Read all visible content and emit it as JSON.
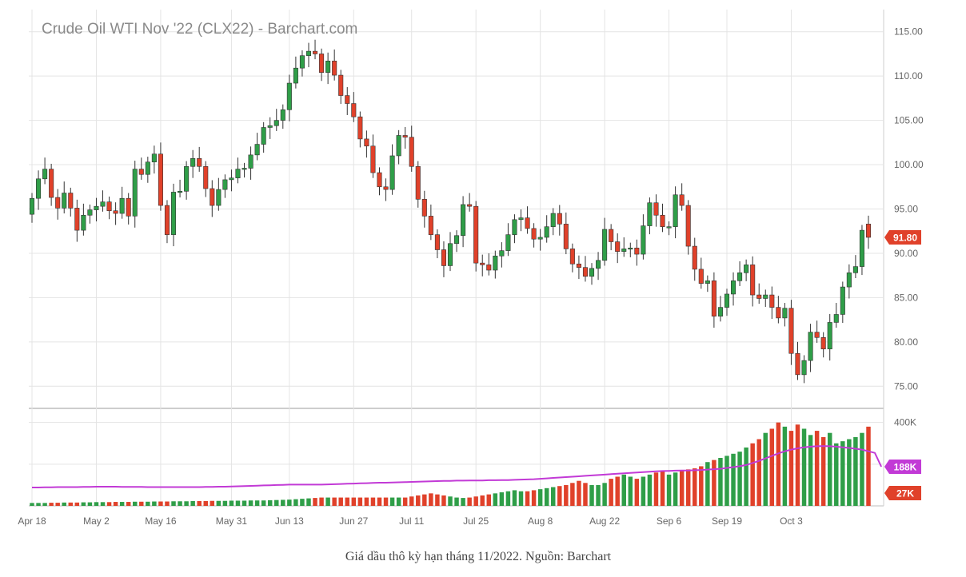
{
  "chart_data": {
    "type": "candlestick",
    "title": "Crude Oil WTI Nov '22 (CLX22) - Barchart.com",
    "price_axis": {
      "ticks": [
        "115.00",
        "110.00",
        "105.00",
        "100.00",
        "95.00",
        "90.00",
        "85.00",
        "80.00",
        "75.00"
      ],
      "range": [
        72.5,
        117.5
      ]
    },
    "volume_axis": {
      "ticks": [
        "400K"
      ],
      "range": [
        0,
        460
      ]
    },
    "x_tick_labels": [
      "Apr 18",
      "May 2",
      "May 16",
      "May 31",
      "Jun 13",
      "Jun 27",
      "Jul 11",
      "Jul 25",
      "Aug 8",
      "Aug 22",
      "Sep 6",
      "Sep 19",
      "Oct 3"
    ],
    "last_price_label": "91.80",
    "volume_ma_label": "188K",
    "last_volume_label": "27K",
    "colors": {
      "up": "#2f9e48",
      "down": "#e0412a",
      "ma": "#c23ad6",
      "grid": "#e4e4e4",
      "axis_text": "#666666"
    },
    "closes": [
      96.2,
      98.4,
      99.5,
      96.3,
      95.1,
      96.8,
      95.1,
      92.6,
      94.3,
      94.9,
      95.3,
      95.8,
      94.8,
      94.5,
      96.2,
      94.2,
      99.5,
      98.9,
      100.3,
      101.2,
      95.4,
      92.1,
      96.9,
      97.0,
      99.8,
      100.7,
      99.8,
      97.3,
      95.4,
      97.2,
      98.3,
      98.5,
      99.5,
      99.6,
      101.1,
      102.3,
      104.2,
      104.4,
      105.0,
      106.2,
      109.2,
      110.9,
      112.3,
      112.8,
      112.5,
      110.4,
      111.7,
      110.1,
      107.8,
      106.9,
      105.4,
      102.9,
      102.1,
      99.1,
      97.5,
      97.2,
      101.0,
      103.3,
      103.1,
      99.8,
      96.1,
      94.2,
      92.1,
      90.4,
      88.6,
      91.1,
      92.0,
      95.5,
      95.3,
      88.9,
      88.7,
      88.1,
      89.7,
      90.3,
      92.1,
      93.8,
      94.0,
      92.8,
      91.6,
      91.8,
      93.0,
      94.5,
      93.3,
      90.5,
      88.8,
      88.4,
      87.4,
      88.3,
      89.2,
      92.7,
      91.3,
      90.2,
      90.5,
      90.6,
      89.9,
      93.1,
      95.7,
      94.3,
      93.0,
      93.0,
      96.6,
      95.4,
      90.8,
      88.2,
      86.6,
      86.9,
      82.9,
      83.9,
      85.4,
      86.9,
      87.8,
      88.7,
      85.3,
      84.9,
      85.3,
      83.9,
      82.7,
      83.8,
      78.7,
      76.3,
      77.9,
      81.1,
      80.5,
      79.2,
      82.2,
      83.1,
      86.2,
      87.8,
      88.5,
      92.6,
      91.8
    ],
    "opens": [
      94.4,
      96.2,
      98.4,
      99.5,
      96.3,
      95.1,
      96.8,
      95.1,
      92.6,
      94.3,
      94.9,
      95.3,
      95.8,
      94.8,
      94.5,
      96.2,
      94.2,
      99.5,
      98.9,
      100.3,
      101.2,
      95.4,
      92.1,
      96.9,
      97.0,
      99.8,
      100.7,
      99.8,
      97.3,
      95.4,
      97.2,
      98.3,
      98.5,
      99.5,
      99.6,
      101.1,
      102.3,
      104.2,
      104.4,
      105.0,
      106.2,
      109.2,
      110.9,
      112.3,
      112.8,
      112.5,
      110.4,
      111.7,
      110.1,
      107.8,
      106.9,
      105.4,
      102.9,
      102.1,
      99.1,
      97.5,
      97.2,
      101.0,
      103.3,
      103.1,
      99.8,
      96.1,
      94.2,
      92.1,
      90.4,
      88.6,
      91.1,
      92.0,
      95.5,
      95.3,
      88.9,
      88.7,
      88.1,
      89.7,
      90.3,
      92.1,
      93.8,
      94.0,
      92.8,
      91.6,
      91.8,
      93.0,
      94.5,
      93.3,
      90.5,
      88.8,
      88.4,
      87.4,
      88.3,
      89.2,
      92.7,
      91.3,
      90.2,
      90.5,
      90.6,
      89.9,
      93.1,
      95.7,
      94.3,
      93.0,
      93.0,
      96.6,
      95.4,
      90.8,
      88.2,
      86.6,
      86.9,
      82.9,
      83.9,
      85.4,
      86.9,
      87.8,
      88.7,
      85.3,
      84.9,
      85.3,
      83.9,
      82.7,
      83.8,
      78.7,
      76.3,
      77.9,
      81.1,
      80.5,
      79.2,
      82.2,
      83.1,
      86.2,
      87.8,
      88.5,
      93.3
    ],
    "volumes": [
      14,
      14,
      14,
      15,
      15,
      16,
      16,
      16,
      17,
      17,
      18,
      18,
      18,
      19,
      19,
      19,
      20,
      20,
      20,
      21,
      21,
      21,
      22,
      22,
      22,
      23,
      23,
      23,
      24,
      24,
      24,
      25,
      25,
      25,
      26,
      26,
      26,
      27,
      28,
      29,
      30,
      32,
      34,
      36,
      38,
      40,
      40,
      40,
      40,
      40,
      40,
      40,
      40,
      40,
      40,
      40,
      40,
      40,
      40,
      45,
      50,
      55,
      60,
      55,
      50,
      45,
      40,
      38,
      40,
      45,
      50,
      55,
      60,
      65,
      70,
      75,
      70,
      70,
      75,
      80,
      85,
      90,
      95,
      100,
      110,
      120,
      110,
      100,
      100,
      110,
      130,
      140,
      150,
      140,
      130,
      140,
      150,
      160,
      170,
      150,
      160,
      170,
      175,
      180,
      190,
      210,
      220,
      230,
      240,
      250,
      260,
      280,
      300,
      320,
      350,
      370,
      400,
      380,
      360,
      390,
      370,
      340,
      360,
      330,
      350,
      300,
      310,
      320,
      330,
      350,
      380,
      420,
      27
    ],
    "volume_ma": [
      88,
      88,
      89,
      89,
      90,
      90,
      90,
      90,
      91,
      91,
      92,
      92,
      92,
      92,
      91,
      91,
      91,
      91,
      90,
      90,
      90,
      90,
      90,
      90,
      90,
      90,
      90,
      91,
      91,
      92,
      92,
      93,
      94,
      95,
      96,
      97,
      98,
      99,
      100,
      101,
      102,
      102,
      102,
      102,
      102,
      102,
      103,
      104,
      105,
      106,
      107,
      108,
      109,
      110,
      111,
      111,
      112,
      113,
      114,
      115,
      116,
      117,
      118,
      119,
      120,
      120,
      121,
      121,
      122,
      122,
      122,
      123,
      123,
      124,
      124,
      125,
      126,
      127,
      128,
      130,
      132,
      134,
      136,
      138,
      140,
      142,
      144,
      146,
      148,
      150,
      152,
      154,
      156,
      158,
      160,
      162,
      164,
      166,
      167,
      168,
      169,
      170,
      170,
      171,
      172,
      174,
      176,
      178,
      182,
      186,
      190,
      196,
      206,
      216,
      228,
      240,
      252,
      262,
      270,
      276,
      281,
      284,
      286,
      287,
      286,
      284,
      281,
      278,
      274,
      270,
      262,
      254,
      188
    ]
  },
  "caption": "Giá dầu thô kỳ hạn tháng 11/2022. Nguồn: Barchart"
}
